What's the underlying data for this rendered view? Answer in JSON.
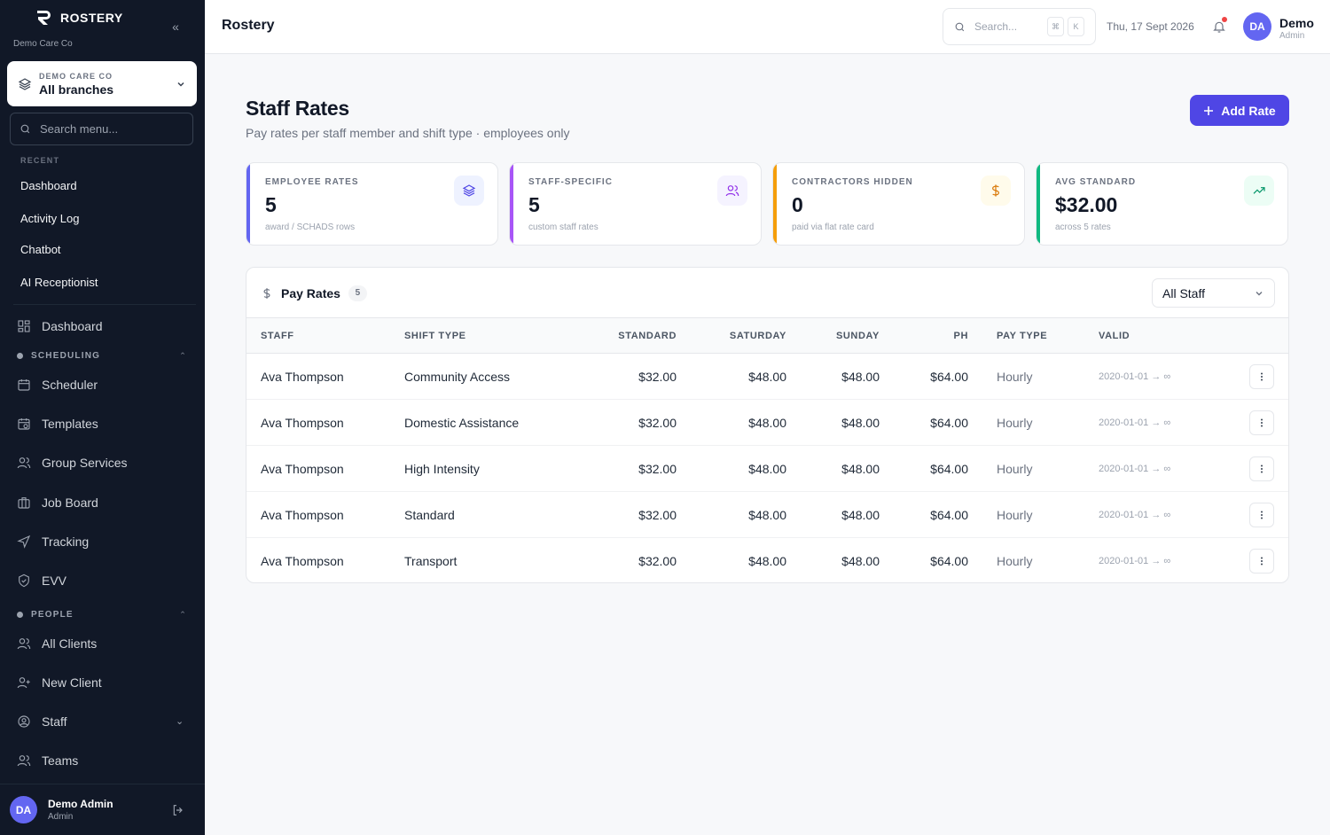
{
  "brand": {
    "name": "ROSTERY",
    "org": "Demo Care Co"
  },
  "branch": {
    "label": "DEMO CARE CO",
    "value": "All branches"
  },
  "side_search": {
    "placeholder": "Search menu..."
  },
  "recent": {
    "label": "RECENT",
    "items": [
      "Dashboard",
      "Activity Log",
      "Chatbot",
      "AI Receptionist"
    ]
  },
  "nav": {
    "dashboard": "Dashboard",
    "scheduling_label": "SCHEDULING",
    "scheduler": "Scheduler",
    "templates": "Templates",
    "group_services": "Group Services",
    "job_board": "Job Board",
    "tracking": "Tracking",
    "evv": "EVV",
    "people_label": "PEOPLE",
    "all_clients": "All Clients",
    "new_client": "New Client",
    "staff": "Staff",
    "teams": "Teams"
  },
  "footer_user": {
    "initials": "DA",
    "name": "Demo Admin",
    "role": "Admin"
  },
  "topbar": {
    "title": "Rostery",
    "search_placeholder": "Search...",
    "kbd1": "⌘",
    "kbd2": "K",
    "date": "Thu, 17 Sept 2026",
    "user_initials": "DA",
    "user_name": "Demo",
    "user_role": "Admin"
  },
  "page": {
    "title": "Staff Rates",
    "subtitle": "Pay rates per staff member and shift type · employees only",
    "add_button": "Add Rate"
  },
  "stats": [
    {
      "label": "EMPLOYEE RATES",
      "value": "5",
      "note": "award / SCHADS rows",
      "color": "#6366f1",
      "icon": "layers-icon"
    },
    {
      "label": "STAFF-SPECIFIC",
      "value": "5",
      "note": "custom staff rates",
      "color": "#a855f7",
      "icon": "users-icon"
    },
    {
      "label": "CONTRACTORS HIDDEN",
      "value": "0",
      "note": "paid via flat rate card",
      "color": "#f59e0b",
      "icon": "dollar-icon"
    },
    {
      "label": "AVG STANDARD",
      "value": "$32.00",
      "note": "across 5 rates",
      "color": "#10b981",
      "icon": "trending-up-icon"
    }
  ],
  "table": {
    "title": "Pay Rates",
    "count": "5",
    "filter": "All Staff",
    "columns": [
      "STAFF",
      "SHIFT TYPE",
      "STANDARD",
      "SATURDAY",
      "SUNDAY",
      "PH",
      "PAY TYPE",
      "VALID"
    ],
    "rows": [
      {
        "staff": "Ava Thompson",
        "shift": "Community Access",
        "standard": "$32.00",
        "saturday": "$48.00",
        "sunday": "$48.00",
        "ph": "$64.00",
        "pay_type": "Hourly",
        "valid": "2020-01-01 → ∞"
      },
      {
        "staff": "Ava Thompson",
        "shift": "Domestic Assistance",
        "standard": "$32.00",
        "saturday": "$48.00",
        "sunday": "$48.00",
        "ph": "$64.00",
        "pay_type": "Hourly",
        "valid": "2020-01-01 → ∞"
      },
      {
        "staff": "Ava Thompson",
        "shift": "High Intensity",
        "standard": "$32.00",
        "saturday": "$48.00",
        "sunday": "$48.00",
        "ph": "$64.00",
        "pay_type": "Hourly",
        "valid": "2020-01-01 → ∞"
      },
      {
        "staff": "Ava Thompson",
        "shift": "Standard",
        "standard": "$32.00",
        "saturday": "$48.00",
        "sunday": "$48.00",
        "ph": "$64.00",
        "pay_type": "Hourly",
        "valid": "2020-01-01 → ∞"
      },
      {
        "staff": "Ava Thompson",
        "shift": "Transport",
        "standard": "$32.00",
        "saturday": "$48.00",
        "sunday": "$48.00",
        "ph": "$64.00",
        "pay_type": "Hourly",
        "valid": "2020-01-01 → ∞"
      }
    ]
  },
  "colors": {
    "accent": "#4f46e5",
    "sidebar": "#111827"
  }
}
